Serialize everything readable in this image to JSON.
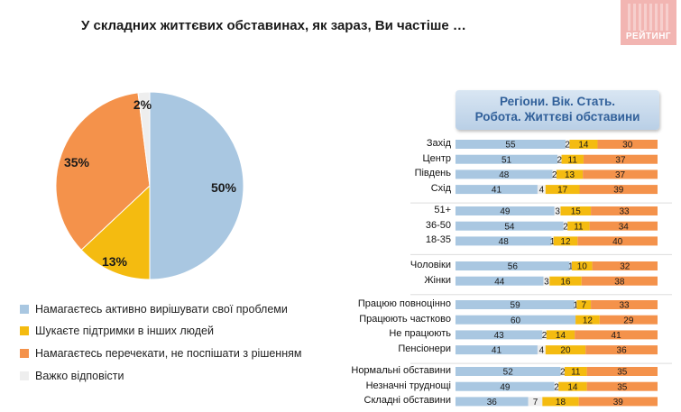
{
  "title": "У складних життєвих обставинах, як зараз, Ви частіше …",
  "logo_text": "РЕЙТИНГ",
  "bar_panel": {
    "header_line1": "Регіони. Вік. Стать.",
    "header_line2": "Робота. Життєві обставини"
  },
  "colors": {
    "active": "#a9c7e1",
    "support": "#f4bb10",
    "wait": "#f4924b",
    "hard": "#eeeeee"
  },
  "chart_data": [
    {
      "type": "pie",
      "slices": [
        {
          "label": "Намагаєтесь активно вирішувати свої проблеми",
          "value": 50,
          "display": "50%",
          "color": "#a9c7e1"
        },
        {
          "label": "Шукаєте підтримки в інших людей",
          "value": 13,
          "display": "13%",
          "color": "#f4bb10"
        },
        {
          "label": "Намагаєтесь перечекати, не поспішати з рішенням",
          "value": 35,
          "display": "35%",
          "color": "#f4924b"
        },
        {
          "label": "Важко відповісти",
          "value": 2,
          "display": "2%",
          "color": "#eeeeee"
        }
      ]
    },
    {
      "type": "bar",
      "orientation": "horizontal",
      "stacked": true,
      "series_colors": [
        "#a9c7e1",
        "#eeeeee",
        "#f4bb10",
        "#f4924b"
      ],
      "groups": [
        [
          {
            "label": "Захід",
            "values": [
              55,
              2,
              14,
              30
            ]
          },
          {
            "label": "Центр",
            "values": [
              51,
              2,
              11,
              37
            ]
          },
          {
            "label": "Південь",
            "values": [
              48,
              2,
              13,
              37
            ]
          },
          {
            "label": "Схід",
            "values": [
              41,
              4,
              17,
              39
            ]
          }
        ],
        [
          {
            "label": "51+",
            "values": [
              49,
              3,
              15,
              33
            ]
          },
          {
            "label": "36-50",
            "values": [
              54,
              2,
              11,
              34
            ]
          },
          {
            "label": "18-35",
            "values": [
              48,
              1,
              12,
              40
            ]
          }
        ],
        [
          {
            "label": "Чоловіки",
            "values": [
              56,
              1,
              10,
              32
            ]
          },
          {
            "label": "Жінки",
            "values": [
              44,
              3,
              16,
              38
            ]
          }
        ],
        [
          {
            "label": "Працюю повноцінно",
            "values": [
              59,
              1,
              7,
              33
            ]
          },
          {
            "label": "Працюють частково",
            "values": [
              60,
              0,
              12,
              29
            ]
          },
          {
            "label": "Не працюють",
            "values": [
              43,
              2,
              14,
              41
            ]
          },
          {
            "label": "Пенсіонери",
            "values": [
              41,
              4,
              20,
              36
            ]
          }
        ],
        [
          {
            "label": "Нормальні обставини",
            "values": [
              52,
              2,
              11,
              35
            ]
          },
          {
            "label": "Незначні труднощі",
            "values": [
              49,
              2,
              14,
              35
            ]
          },
          {
            "label": "Складні обставини",
            "values": [
              36,
              7,
              18,
              39
            ]
          }
        ]
      ]
    }
  ]
}
